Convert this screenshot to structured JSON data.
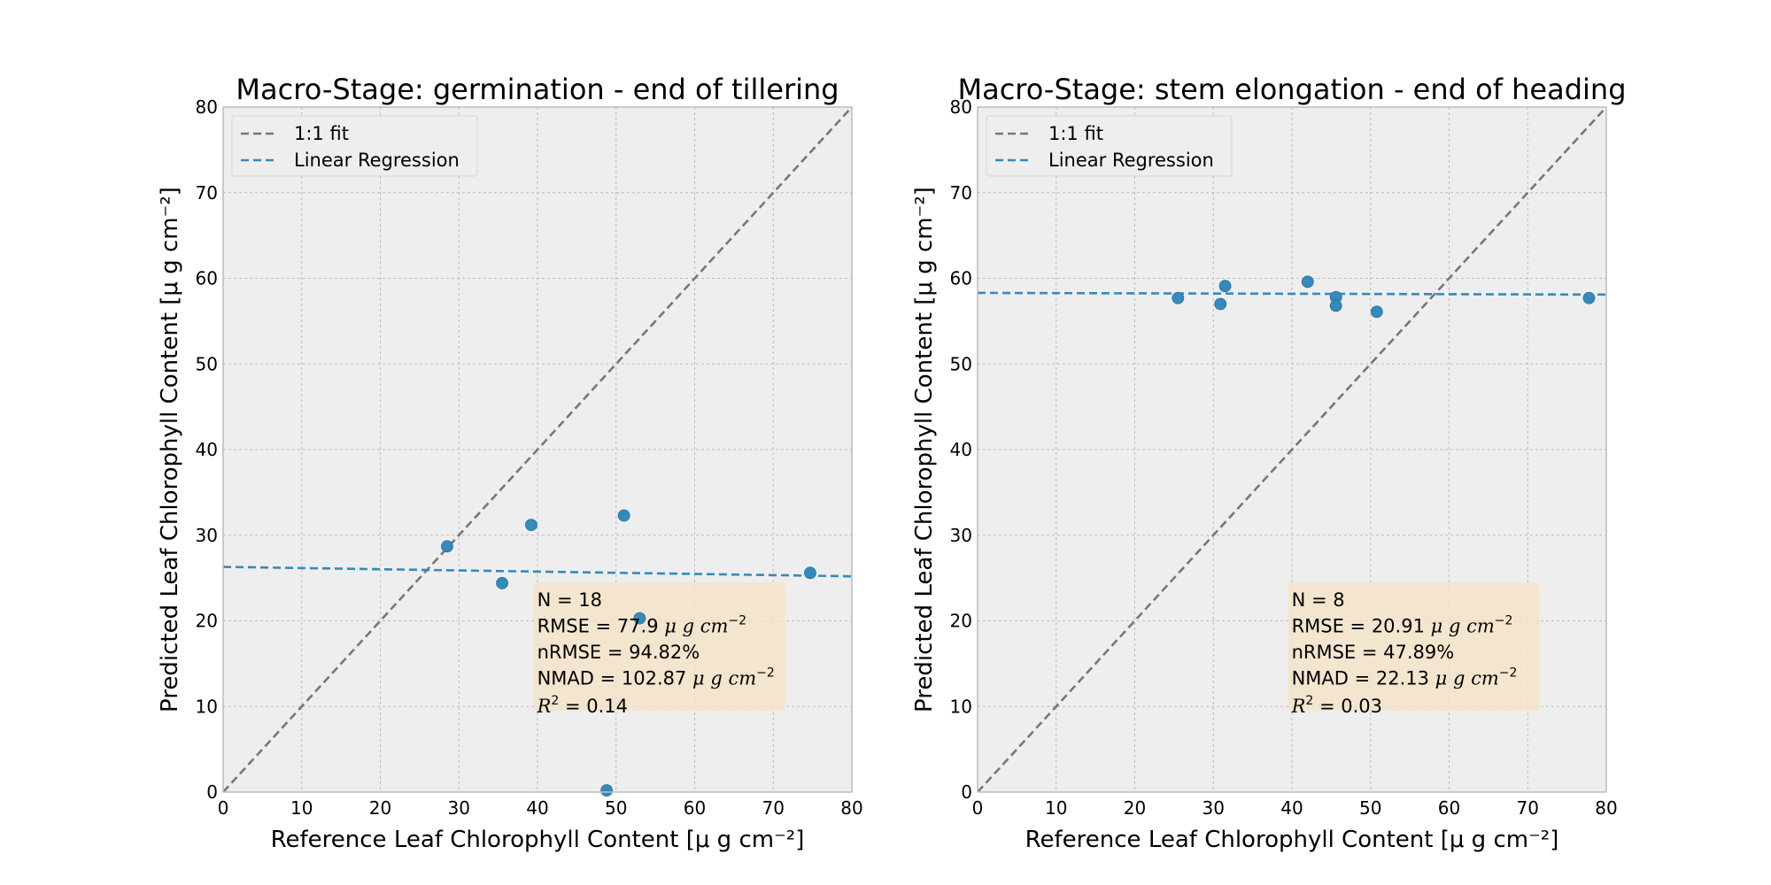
{
  "colors": {
    "axes_bg": "#eeeeee",
    "grid": "#bbbbbb",
    "frame": "#bcbcbc",
    "point": "#348abd",
    "regression": "#348abd",
    "one_to_one": "#777777",
    "stats_box": "#f5e3c5"
  },
  "chart_data": [
    {
      "type": "scatter",
      "title": "Macro-Stage: germination - end of tillering",
      "xlabel": "Reference Leaf Chlorophyll Content [μ g cm⁻²]",
      "ylabel": "Predicted Leaf Chlorophyll Content [μ g cm⁻²]",
      "xlim": [
        0,
        80
      ],
      "ylim": [
        0,
        80
      ],
      "xticks": [
        "0",
        "10",
        "20",
        "30",
        "40",
        "50",
        "60",
        "70",
        "80"
      ],
      "yticks": [
        "0",
        "10",
        "20",
        "30",
        "40",
        "50",
        "60",
        "70",
        "80"
      ],
      "grid": true,
      "legend_position": "top-left",
      "legend": [
        "1:1 fit",
        "Linear Regression"
      ],
      "points": [
        {
          "x": 28.5,
          "y": 28.7
        },
        {
          "x": 35.5,
          "y": 24.4
        },
        {
          "x": 39.2,
          "y": 31.2
        },
        {
          "x": 51.0,
          "y": 32.3
        },
        {
          "x": 53.0,
          "y": 20.3
        },
        {
          "x": 48.8,
          "y": 0.2
        },
        {
          "x": 74.7,
          "y": 25.6
        }
      ],
      "regression": {
        "x": [
          0,
          80
        ],
        "y": [
          26.3,
          25.2
        ]
      },
      "stats": {
        "n": "N = 18",
        "rmse_label": "RMSE = 77.9",
        "nrmse": "nRMSE = 94.82%",
        "nmad_label": "NMAD = 102.87",
        "r2_value": " = 0.14",
        "unit": "μ g cm",
        "unit_exp": "−2",
        "r2_symbol": "R",
        "r2_exp": "2"
      }
    },
    {
      "type": "scatter",
      "title": "Macro-Stage: stem elongation - end of heading",
      "xlabel": "Reference Leaf Chlorophyll Content [μ g cm⁻²]",
      "ylabel": "Predicted Leaf Chlorophyll Content [μ g cm⁻²]",
      "xlim": [
        0,
        80
      ],
      "ylim": [
        0,
        80
      ],
      "xticks": [
        "0",
        "10",
        "20",
        "30",
        "40",
        "50",
        "60",
        "70",
        "80"
      ],
      "yticks": [
        "0",
        "10",
        "20",
        "30",
        "40",
        "50",
        "60",
        "70",
        "80"
      ],
      "grid": true,
      "legend_position": "top-left",
      "legend": [
        "1:1 fit",
        "Linear Regression"
      ],
      "points": [
        {
          "x": 25.5,
          "y": 57.7
        },
        {
          "x": 30.9,
          "y": 57.0
        },
        {
          "x": 31.5,
          "y": 59.1
        },
        {
          "x": 42.0,
          "y": 59.6
        },
        {
          "x": 45.6,
          "y": 57.8
        },
        {
          "x": 45.6,
          "y": 56.8
        },
        {
          "x": 50.8,
          "y": 56.1
        },
        {
          "x": 77.8,
          "y": 57.7
        }
      ],
      "regression": {
        "x": [
          0,
          80
        ],
        "y": [
          58.3,
          58.1
        ]
      },
      "stats": {
        "n": "N = 8",
        "rmse_label": "RMSE = 20.91",
        "nrmse": "nRMSE = 47.89%",
        "nmad_label": "NMAD = 22.13",
        "r2_value": " = 0.03",
        "unit": "μ g cm",
        "unit_exp": "−2",
        "r2_symbol": "R",
        "r2_exp": "2"
      }
    }
  ]
}
